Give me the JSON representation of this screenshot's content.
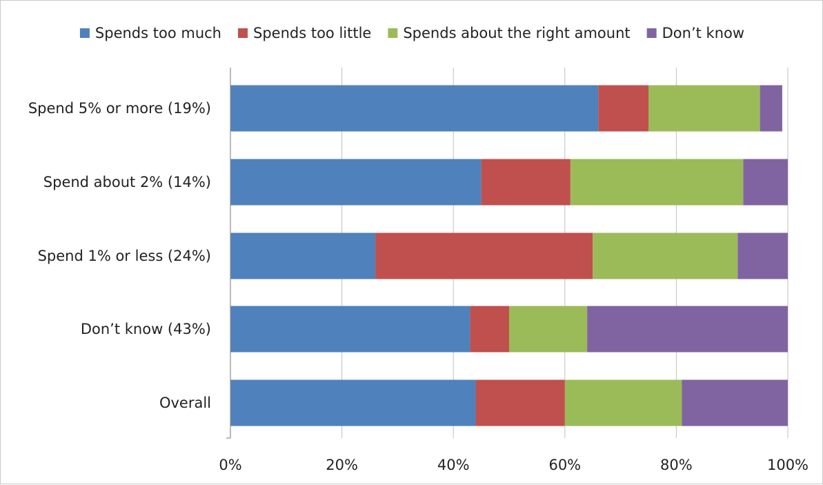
{
  "chart_data": {
    "type": "bar",
    "orientation": "horizontal",
    "stacked": true,
    "title": "",
    "xlabel": "",
    "ylabel": "",
    "xlim": [
      0,
      100
    ],
    "x_ticks": [
      "0%",
      "20%",
      "40%",
      "60%",
      "80%",
      "100%"
    ],
    "x_tick_values": [
      0,
      20,
      40,
      60,
      80,
      100
    ],
    "grid": "vertical",
    "legend_position": "top",
    "categories": [
      "Spend 5% or more (19%)",
      "Spend about 2% (14%)",
      "Spend 1% or less (24%)",
      "Don’t know (43%)",
      "Overall"
    ],
    "series": [
      {
        "name": "Spends too much",
        "color": "#4f81bd",
        "values": [
          66,
          45,
          26,
          43,
          44
        ]
      },
      {
        "name": "Spends too little",
        "color": "#c0504d",
        "values": [
          9,
          16,
          39,
          7,
          16
        ]
      },
      {
        "name": "Spends about the right amount",
        "color": "#9bbb59",
        "values": [
          20,
          31,
          26,
          14,
          21
        ]
      },
      {
        "name": "Don’t know",
        "color": "#8064a2",
        "values": [
          4,
          8,
          9,
          36,
          19
        ]
      }
    ]
  }
}
